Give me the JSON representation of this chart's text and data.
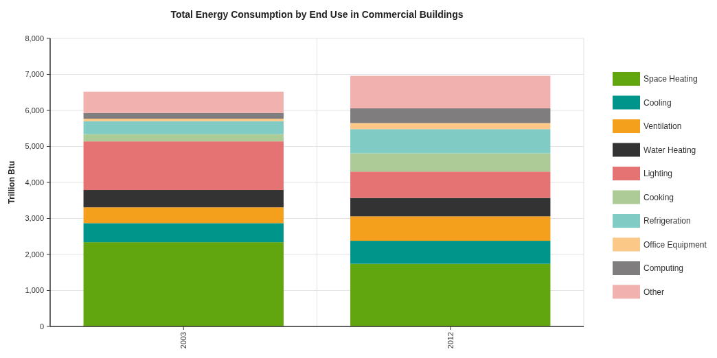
{
  "chart_data": {
    "type": "bar",
    "title": "Total Energy Consumption by End Use in Commercial Buildings",
    "ylabel": "Trillion Btu",
    "categories": [
      "2003",
      "2012"
    ],
    "stacked": true,
    "series": [
      {
        "name": "Space Heating",
        "color": "#62a60f",
        "values": [
          2340,
          1740
        ]
      },
      {
        "name": "Cooling",
        "color": "#00958b",
        "values": [
          530,
          640
        ]
      },
      {
        "name": "Ventilation",
        "color": "#f4a01d",
        "values": [
          440,
          680
        ]
      },
      {
        "name": "Water Heating",
        "color": "#333333",
        "values": [
          480,
          510
        ]
      },
      {
        "name": "Lighting",
        "color": "#e57373",
        "values": [
          1350,
          730
        ]
      },
      {
        "name": "Cooking",
        "color": "#adcb96",
        "values": [
          200,
          510
        ]
      },
      {
        "name": "Refrigeration",
        "color": "#80cbc4",
        "values": [
          360,
          670
        ]
      },
      {
        "name": "Office Equipment",
        "color": "#fcc887",
        "values": [
          70,
          170
        ]
      },
      {
        "name": "Computing",
        "color": "#7f7d7e",
        "values": [
          160,
          410
        ]
      },
      {
        "name": "Other",
        "color": "#f1b1ae",
        "values": [
          590,
          900
        ]
      }
    ],
    "ylim": [
      0,
      8000
    ],
    "yticks": [
      {
        "value": 0,
        "label": "0"
      },
      {
        "value": 1000,
        "label": "1,000"
      },
      {
        "value": 2000,
        "label": "2,000"
      },
      {
        "value": 3000,
        "label": "3,000"
      },
      {
        "value": 4000,
        "label": "4,000"
      },
      {
        "value": 5000,
        "label": "5,000"
      },
      {
        "value": 6000,
        "label": "6,000"
      },
      {
        "value": 7000,
        "label": "7,000"
      },
      {
        "value": 8000,
        "label": "8,000"
      }
    ],
    "grid": true,
    "legend": "right"
  }
}
